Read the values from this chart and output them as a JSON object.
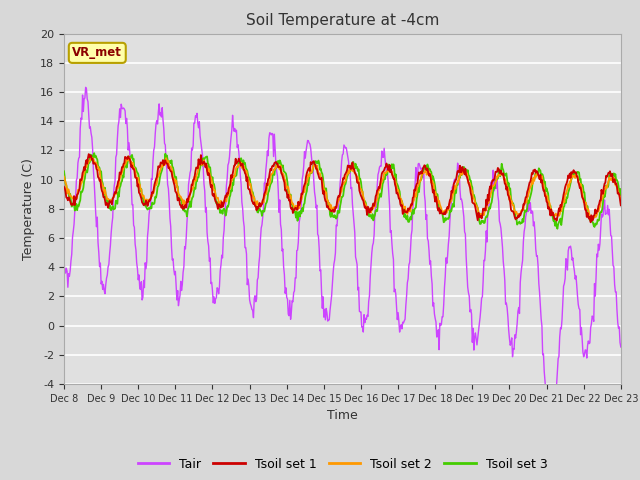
{
  "title": "Soil Temperature at -4cm",
  "xlabel": "Time",
  "ylabel": "Temperature (C)",
  "ylim": [
    -4,
    20
  ],
  "xlim": [
    0,
    360
  ],
  "fig_facecolor": "#d8d8d8",
  "plot_bg_color": "#e0e0e0",
  "annotation_label": "VR_met",
  "annotation_color": "#8B0000",
  "annotation_bg": "#ffffaa",
  "annotation_border": "#b8a000",
  "line_colors": {
    "Tair": "#cc44ff",
    "Tsoil1": "#cc0000",
    "Tsoil2": "#ff9900",
    "Tsoil3": "#44cc00"
  },
  "legend_labels": [
    "Tair",
    "Tsoil set 1",
    "Tsoil set 2",
    "Tsoil set 3"
  ],
  "xtick_labels": [
    "Dec 8",
    "Dec 9",
    "Dec 10",
    "Dec 11",
    "Dec 12",
    "Dec 13",
    "Dec 14",
    "Dec 15",
    "Dec 16",
    "Dec 17",
    "Dec 18",
    "Dec 19",
    "Dec 20",
    "Dec 21",
    "Dec 22",
    "Dec 23"
  ],
  "xtick_positions": [
    0,
    24,
    48,
    72,
    96,
    120,
    144,
    168,
    192,
    216,
    240,
    264,
    288,
    312,
    336,
    360
  ],
  "ytick_positions": [
    -4,
    -2,
    0,
    2,
    4,
    6,
    8,
    10,
    12,
    14,
    16,
    18,
    20
  ],
  "n_points": 721
}
